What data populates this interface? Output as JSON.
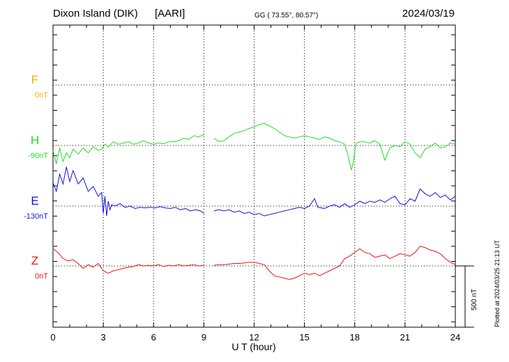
{
  "header": {
    "station": "Dixon Island (DIK)",
    "institute": "[AARI]",
    "coords": "GG ( 73.55°,  80.57°)",
    "date": "2024/03/19"
  },
  "footer": {
    "plotted": "Plotted at 2024/03/25 21:13 UT",
    "scale_label": "500 nT"
  },
  "chart_data": {
    "type": "line",
    "xlabel": "U T (hour)",
    "xlim": [
      0,
      24
    ],
    "xticks": [
      "0",
      "3",
      "6",
      "9",
      "12",
      "15",
      "18",
      "21",
      "24"
    ],
    "scale_nT": 500,
    "grid": true,
    "series": [
      {
        "name": "F",
        "baseline": "0nT",
        "color": "#f2b000",
        "baseline_value": 0,
        "points": []
      },
      {
        "name": "H",
        "baseline": "-90nT",
        "color": "#22dd22",
        "baseline_value": -90,
        "points": [
          [
            0,
            -40
          ],
          [
            0.2,
            -150
          ],
          [
            0.4,
            -20
          ],
          [
            0.6,
            -130
          ],
          [
            0.8,
            -60
          ],
          [
            1.0,
            -100
          ],
          [
            1.2,
            -30
          ],
          [
            1.5,
            -70
          ],
          [
            1.8,
            -20
          ],
          [
            2.1,
            -60
          ],
          [
            2.4,
            -10
          ],
          [
            2.7,
            -40
          ],
          [
            2.9,
            -30
          ],
          [
            3.1,
            10
          ],
          [
            3.3,
            -10
          ],
          [
            3.6,
            30
          ],
          [
            3.9,
            10
          ],
          [
            4.2,
            20
          ],
          [
            4.5,
            30
          ],
          [
            4.8,
            10
          ],
          [
            5.1,
            20
          ],
          [
            5.4,
            40
          ],
          [
            5.7,
            20
          ],
          [
            6.0,
            10
          ],
          [
            6.3,
            20
          ],
          [
            6.6,
            15
          ],
          [
            6.9,
            30
          ],
          [
            7.2,
            30
          ],
          [
            7.5,
            40
          ],
          [
            7.8,
            60
          ],
          [
            8.1,
            50
          ],
          [
            8.4,
            80
          ],
          [
            8.7,
            70
          ],
          [
            9.0,
            90
          ],
          null,
          [
            9.6,
            60
          ],
          [
            9.9,
            30
          ],
          [
            10.2,
            40
          ],
          [
            10.5,
            70
          ],
          [
            10.8,
            100
          ],
          [
            11.1,
            110
          ],
          [
            11.4,
            120
          ],
          [
            11.7,
            140
          ],
          [
            12.0,
            150
          ],
          [
            12.3,
            170
          ],
          [
            12.6,
            180
          ],
          [
            12.9,
            160
          ],
          [
            13.2,
            140
          ],
          [
            13.5,
            110
          ],
          [
            13.8,
            80
          ],
          [
            14.1,
            70
          ],
          [
            14.4,
            60
          ],
          [
            14.7,
            70
          ],
          [
            15.0,
            80
          ],
          [
            15.3,
            70
          ],
          [
            15.6,
            60
          ],
          [
            15.9,
            50
          ],
          [
            16.2,
            70
          ],
          [
            16.5,
            60
          ],
          [
            16.8,
            40
          ],
          [
            17.1,
            30
          ],
          [
            17.4,
            10
          ],
          [
            17.6,
            -80
          ],
          [
            17.8,
            -200
          ],
          [
            17.9,
            -150
          ],
          [
            18.0,
            -40
          ],
          [
            18.1,
            20
          ],
          [
            18.3,
            30
          ],
          [
            18.6,
            30
          ],
          [
            18.9,
            20
          ],
          [
            19.2,
            40
          ],
          [
            19.5,
            10
          ],
          [
            19.8,
            -120
          ],
          [
            20.1,
            -20
          ],
          [
            20.4,
            0
          ],
          [
            20.7,
            -10
          ],
          [
            21.0,
            30
          ],
          [
            21.3,
            10
          ],
          [
            21.6,
            -60
          ],
          [
            21.9,
            -100
          ],
          [
            22.2,
            -30
          ],
          [
            22.5,
            -10
          ],
          [
            22.8,
            20
          ],
          [
            23.1,
            -20
          ],
          [
            23.4,
            -10
          ],
          [
            23.7,
            20
          ],
          [
            24.0,
            10
          ]
        ]
      },
      {
        "name": "E",
        "baseline": "-130nT",
        "color": "#1111dd",
        "baseline_value": -130,
        "points": [
          [
            0,
            190
          ],
          [
            0.2,
            120
          ],
          [
            0.4,
            260
          ],
          [
            0.6,
            180
          ],
          [
            0.8,
            320
          ],
          [
            1.0,
            200
          ],
          [
            1.2,
            290
          ],
          [
            1.5,
            180
          ],
          [
            1.8,
            230
          ],
          [
            2.1,
            120
          ],
          [
            2.4,
            160
          ],
          [
            2.7,
            80
          ],
          [
            2.9,
            110
          ],
          [
            3.0,
            -60
          ],
          [
            3.1,
            80
          ],
          [
            3.2,
            -80
          ],
          [
            3.3,
            40
          ],
          [
            3.4,
            -30
          ],
          [
            3.5,
            10
          ],
          [
            3.7,
            0
          ],
          [
            4.0,
            20
          ],
          [
            4.3,
            -10
          ],
          [
            4.6,
            0
          ],
          [
            4.9,
            -20
          ],
          [
            5.2,
            -10
          ],
          [
            5.5,
            -15
          ],
          [
            5.8,
            -10
          ],
          [
            6.1,
            -15
          ],
          [
            6.4,
            -5
          ],
          [
            6.7,
            -15
          ],
          [
            7.0,
            -20
          ],
          [
            7.3,
            -10
          ],
          [
            7.6,
            -30
          ],
          [
            7.9,
            -20
          ],
          [
            8.2,
            -40
          ],
          [
            8.5,
            -30
          ],
          [
            8.8,
            -40
          ],
          [
            9.0,
            -60
          ],
          null,
          [
            9.6,
            -40
          ],
          [
            9.9,
            -30
          ],
          [
            10.2,
            -40
          ],
          [
            10.5,
            -30
          ],
          [
            10.8,
            -50
          ],
          [
            11.1,
            -40
          ],
          [
            11.4,
            -60
          ],
          [
            11.7,
            -50
          ],
          [
            12.0,
            -70
          ],
          [
            12.3,
            -60
          ],
          [
            12.6,
            -80
          ],
          [
            12.9,
            -70
          ],
          [
            13.2,
            -60
          ],
          [
            13.5,
            -50
          ],
          [
            13.8,
            -40
          ],
          [
            14.1,
            -30
          ],
          [
            14.4,
            -20
          ],
          [
            14.7,
            -10
          ],
          [
            15.0,
            -20
          ],
          [
            15.3,
            0
          ],
          [
            15.6,
            60
          ],
          [
            15.8,
            -10
          ],
          [
            16.2,
            -20
          ],
          [
            16.5,
            0
          ],
          [
            16.8,
            10
          ],
          [
            17.1,
            -10
          ],
          [
            17.4,
            20
          ],
          [
            17.7,
            -10
          ],
          [
            18.0,
            10
          ],
          [
            18.3,
            40
          ],
          [
            18.6,
            20
          ],
          [
            18.9,
            40
          ],
          [
            19.2,
            30
          ],
          [
            19.5,
            50
          ],
          [
            19.8,
            30
          ],
          [
            20.1,
            60
          ],
          [
            20.4,
            80
          ],
          [
            20.7,
            20
          ],
          [
            21.0,
            10
          ],
          [
            21.3,
            60
          ],
          [
            21.6,
            40
          ],
          [
            21.9,
            140
          ],
          [
            22.2,
            100
          ],
          [
            22.5,
            80
          ],
          [
            22.8,
            110
          ],
          [
            23.1,
            70
          ],
          [
            23.4,
            90
          ],
          [
            23.7,
            50
          ],
          [
            24.0,
            80
          ]
        ]
      },
      {
        "name": "Z",
        "baseline": "0nT",
        "color": "#ee1111",
        "baseline_value": 0,
        "points": [
          [
            0,
            140
          ],
          [
            0.3,
            110
          ],
          [
            0.6,
            60
          ],
          [
            0.9,
            40
          ],
          [
            1.2,
            50
          ],
          [
            1.5,
            20
          ],
          [
            1.8,
            -20
          ],
          [
            2.1,
            10
          ],
          [
            2.4,
            -10
          ],
          [
            2.7,
            20
          ],
          [
            3.0,
            -40
          ],
          [
            3.3,
            -60
          ],
          [
            3.6,
            -40
          ],
          [
            3.9,
            -30
          ],
          [
            4.2,
            -20
          ],
          [
            4.5,
            -10
          ],
          [
            4.8,
            -5
          ],
          [
            5.1,
            10
          ],
          [
            5.4,
            0
          ],
          [
            5.7,
            5
          ],
          [
            6.0,
            0
          ],
          [
            6.3,
            10
          ],
          [
            6.6,
            -5
          ],
          [
            6.9,
            5
          ],
          [
            7.2,
            0
          ],
          [
            7.5,
            10
          ],
          [
            7.8,
            0
          ],
          [
            8.1,
            5
          ],
          [
            8.4,
            10
          ],
          [
            8.7,
            0
          ],
          [
            9.0,
            5
          ],
          null,
          [
            9.6,
            5
          ],
          [
            9.9,
            10
          ],
          [
            10.2,
            10
          ],
          [
            10.5,
            15
          ],
          [
            10.8,
            20
          ],
          [
            11.1,
            20
          ],
          [
            11.4,
            25
          ],
          [
            11.7,
            30
          ],
          [
            12.0,
            30
          ],
          [
            12.3,
            20
          ],
          [
            12.6,
            10
          ],
          [
            12.9,
            -40
          ],
          [
            13.2,
            -80
          ],
          [
            13.5,
            -90
          ],
          [
            13.8,
            -100
          ],
          [
            14.1,
            -110
          ],
          [
            14.4,
            -100
          ],
          [
            14.7,
            -80
          ],
          [
            15.0,
            -60
          ],
          [
            15.3,
            -70
          ],
          [
            15.6,
            -60
          ],
          [
            15.9,
            -80
          ],
          [
            16.2,
            -60
          ],
          [
            16.5,
            -40
          ],
          [
            16.8,
            -20
          ],
          [
            17.1,
            0
          ],
          [
            17.4,
            60
          ],
          [
            17.7,
            80
          ],
          [
            18.0,
            110
          ],
          [
            18.3,
            140
          ],
          [
            18.6,
            110
          ],
          [
            18.9,
            100
          ],
          [
            19.2,
            70
          ],
          [
            19.5,
            80
          ],
          [
            19.8,
            90
          ],
          [
            20.1,
            60
          ],
          [
            20.4,
            80
          ],
          [
            20.7,
            100
          ],
          [
            21.0,
            90
          ],
          [
            21.3,
            80
          ],
          [
            21.6,
            110
          ],
          [
            21.9,
            160
          ],
          [
            22.2,
            150
          ],
          [
            22.5,
            130
          ],
          [
            22.8,
            120
          ],
          [
            23.1,
            100
          ],
          [
            23.4,
            60
          ],
          [
            23.7,
            30
          ],
          [
            24.0,
            10
          ]
        ]
      }
    ]
  }
}
